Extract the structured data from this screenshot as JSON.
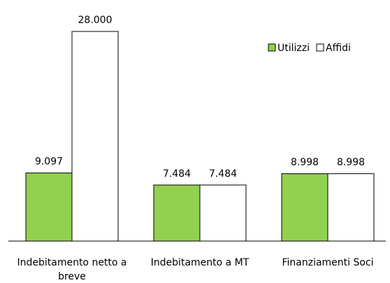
{
  "chart_data": {
    "type": "bar",
    "categories": [
      "Indebitamento netto a breve",
      "Indebitamento a MT",
      "Finanziamenti Soci"
    ],
    "series": [
      {
        "name": "Utilizzi",
        "color": "#92d050",
        "values": [
          9097,
          7484,
          8998
        ],
        "value_labels": [
          "9.097",
          "7.484",
          "8.998"
        ]
      },
      {
        "name": "Affidi",
        "color": "#ffffff",
        "values": [
          28000,
          7484,
          8998
        ],
        "value_labels": [
          "28.000",
          "7.484",
          "8.998"
        ]
      }
    ],
    "legend": "top-right"
  }
}
